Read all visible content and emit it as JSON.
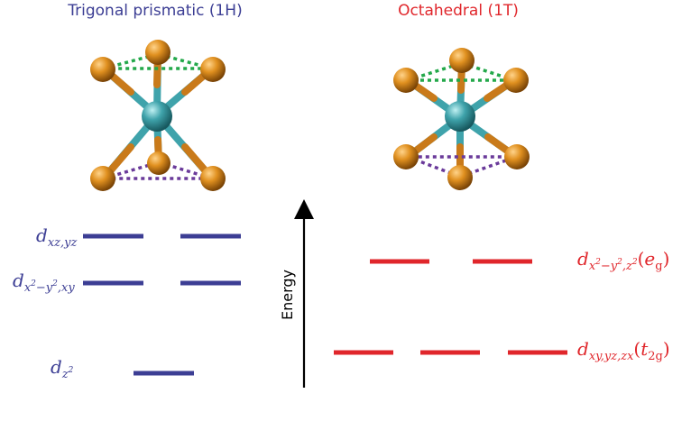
{
  "colors": {
    "blue": "#3c3e94",
    "red": "#e0262b",
    "metal": "#3fa3ab",
    "chalcogen": "#e0901f",
    "bond_metal": "#3fa3ab",
    "bond_chalcogen": "#c97a1a",
    "top_triangle": "#23a84a",
    "bottom_triangle": "#6a3a9a",
    "axis": "#000000"
  },
  "left": {
    "title": "Trigonal prismatic (1H)",
    "levels": [
      {
        "id": "dxzyz",
        "base": "d",
        "sub": "xz,yz",
        "count": 2
      },
      {
        "id": "dx2y2xy",
        "base": "d",
        "sub_parts": [
          "x",
          "2",
          "−y",
          "2",
          ",xy"
        ],
        "count": 2
      },
      {
        "id": "dz2",
        "base": "d",
        "sub_parts": [
          "z",
          "2"
        ],
        "count": 1
      }
    ]
  },
  "right": {
    "title": "Octahedral (1T)",
    "levels": [
      {
        "id": "eg",
        "base": "d",
        "sub_parts": [
          "x",
          "2",
          "−y",
          "2",
          ",z",
          "2"
        ],
        "sym": "e",
        "sym_sub": "g",
        "count": 2
      },
      {
        "id": "t2g",
        "base": "d",
        "sub": "xy,yz,zx",
        "sym": "t",
        "sym_sub": "2g",
        "count": 3
      }
    ]
  },
  "axis": {
    "label": "Energy"
  }
}
